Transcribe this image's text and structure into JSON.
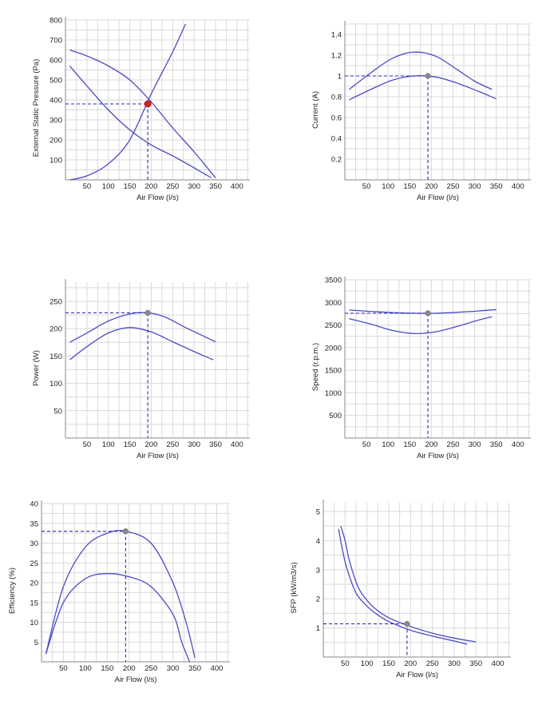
{
  "colors": {
    "curve": "#4b4bc4",
    "guide": "#2a2ab0",
    "duty_point_main": "#d81e1e",
    "duty_point": "#8a8a8a",
    "grid": "#d9d9d9"
  },
  "chart_data": [
    {
      "id": "pressure",
      "type": "line",
      "xlabel": "Air Flow (l/s)",
      "ylabel": "External Static Pressure (Pa)",
      "xlim": [
        0,
        430
      ],
      "ylim": [
        0,
        800
      ],
      "xticks": [
        50,
        100,
        150,
        200,
        250,
        300,
        350,
        400
      ],
      "yticks": [
        100,
        200,
        300,
        400,
        500,
        600,
        700,
        800
      ],
      "grid": true,
      "series": [
        {
          "x": [
            10,
            50,
            100,
            150,
            200,
            250,
            300,
            350
          ],
          "y": [
            650,
            620,
            570,
            500,
            390,
            260,
            140,
            10
          ]
        },
        {
          "x": [
            10,
            50,
            100,
            150,
            200,
            250,
            300,
            340
          ],
          "y": [
            570,
            470,
            350,
            250,
            175,
            120,
            60,
            10
          ]
        },
        {
          "x": [
            10,
            50,
            100,
            150,
            200,
            250,
            280
          ],
          "y": [
            0,
            20,
            80,
            200,
            430,
            640,
            780
          ]
        }
      ],
      "duty_point": {
        "x": 192,
        "y": 380,
        "style": "main"
      }
    },
    {
      "id": "current",
      "type": "line",
      "xlabel": "Air Flow (l/s)",
      "ylabel": "Current (A)",
      "xlim": [
        0,
        430
      ],
      "ylim": [
        0,
        1.5
      ],
      "xticks": [
        50,
        100,
        150,
        200,
        250,
        300,
        350,
        400
      ],
      "yticks": [
        "0.2",
        "0.4",
        "0.6",
        "0.8",
        "1",
        "1.2",
        "1.4"
      ],
      "grid": true,
      "series": [
        {
          "x": [
            10,
            60,
            110,
            160,
            210,
            260,
            300,
            340
          ],
          "y": [
            0.87,
            1.03,
            1.17,
            1.23,
            1.19,
            1.06,
            0.95,
            0.87
          ]
        },
        {
          "x": [
            10,
            60,
            110,
            160,
            210,
            260,
            310,
            350
          ],
          "y": [
            0.77,
            0.87,
            0.96,
            1.0,
            0.99,
            0.93,
            0.85,
            0.78
          ]
        }
      ],
      "duty_point": {
        "x": 192,
        "y": 1.0,
        "style": "grey"
      }
    },
    {
      "id": "power",
      "type": "line",
      "xlabel": "Air Flow (l/s)",
      "ylabel": "Power (W)",
      "xlim": [
        0,
        430
      ],
      "ylim": [
        0,
        285
      ],
      "xticks": [
        50,
        100,
        150,
        200,
        250,
        300,
        350,
        400
      ],
      "yticks": [
        50,
        100,
        150,
        200,
        250
      ],
      "grid": true,
      "series": [
        {
          "x": [
            10,
            50,
            100,
            150,
            190,
            230,
            280,
            350
          ],
          "y": [
            175,
            192,
            214,
            227,
            229,
            222,
            202,
            176
          ]
        },
        {
          "x": [
            10,
            50,
            100,
            150,
            200,
            250,
            300,
            345
          ],
          "y": [
            143,
            167,
            192,
            202,
            194,
            176,
            158,
            143
          ]
        }
      ],
      "duty_point": {
        "x": 192,
        "y": 229,
        "style": "grey"
      }
    },
    {
      "id": "speed",
      "type": "line",
      "xlabel": "Air Flow (l/s)",
      "ylabel": "Speed (r.p.m.)",
      "xlim": [
        0,
        430
      ],
      "ylim": [
        0,
        3500
      ],
      "xticks": [
        50,
        100,
        150,
        200,
        250,
        300,
        350,
        400
      ],
      "yticks": [
        500,
        1000,
        1500,
        2000,
        2500,
        3000,
        3500
      ],
      "grid": true,
      "series": [
        {
          "x": [
            10,
            60,
            110,
            160,
            210,
            260,
            310,
            350
          ],
          "y": [
            2830,
            2800,
            2775,
            2760,
            2760,
            2780,
            2810,
            2840
          ]
        },
        {
          "x": [
            10,
            60,
            110,
            160,
            210,
            260,
            310,
            340
          ],
          "y": [
            2640,
            2520,
            2380,
            2310,
            2350,
            2470,
            2610,
            2680
          ]
        }
      ],
      "duty_point": {
        "x": 192,
        "y": 2760,
        "style": "grey"
      }
    },
    {
      "id": "efficiency",
      "type": "line",
      "xlabel": "Air Flow (l/s)",
      "ylabel": "Efficiency (%)",
      "xlim": [
        0,
        430
      ],
      "ylim": [
        0,
        40
      ],
      "xticks": [
        50,
        100,
        150,
        200,
        250,
        300,
        350,
        400
      ],
      "yticks": [
        5,
        10,
        15,
        20,
        25,
        30,
        35,
        40
      ],
      "grid": true,
      "series": [
        {
          "x": [
            10,
            50,
            100,
            150,
            192,
            250,
            300,
            330,
            350
          ],
          "y": [
            2,
            19,
            29,
            32.5,
            33,
            30,
            20,
            10,
            1
          ]
        },
        {
          "x": [
            10,
            50,
            100,
            150,
            200,
            250,
            300,
            320,
            338
          ],
          "y": [
            2,
            15,
            21,
            22.3,
            21.5,
            19,
            12,
            5,
            0
          ]
        }
      ],
      "duty_point": {
        "x": 192,
        "y": 33,
        "style": "grey"
      }
    },
    {
      "id": "sfp",
      "type": "line",
      "xlabel": "Air Flow (l/s)",
      "ylabel": "SFP (kW/m3/s)",
      "xlim": [
        0,
        430
      ],
      "ylim": [
        0,
        5.3
      ],
      "xticks": [
        50,
        100,
        150,
        200,
        250,
        300,
        350,
        400
      ],
      "yticks": [
        1,
        2,
        3,
        4,
        5
      ],
      "grid": true,
      "series": [
        {
          "x": [
            40,
            50,
            60,
            80,
            100,
            120,
            150,
            200,
            250,
            300,
            350
          ],
          "y": [
            4.5,
            4.0,
            3.3,
            2.4,
            1.95,
            1.65,
            1.35,
            1.05,
            0.82,
            0.65,
            0.52
          ]
        },
        {
          "x": [
            35,
            45,
            55,
            75,
            100,
            120,
            150,
            200,
            250,
            300,
            330
          ],
          "y": [
            4.4,
            3.6,
            3.0,
            2.2,
            1.75,
            1.5,
            1.22,
            0.92,
            0.72,
            0.55,
            0.44
          ]
        }
      ],
      "duty_point": {
        "x": 192,
        "y": 1.14,
        "style": "grey"
      }
    }
  ]
}
